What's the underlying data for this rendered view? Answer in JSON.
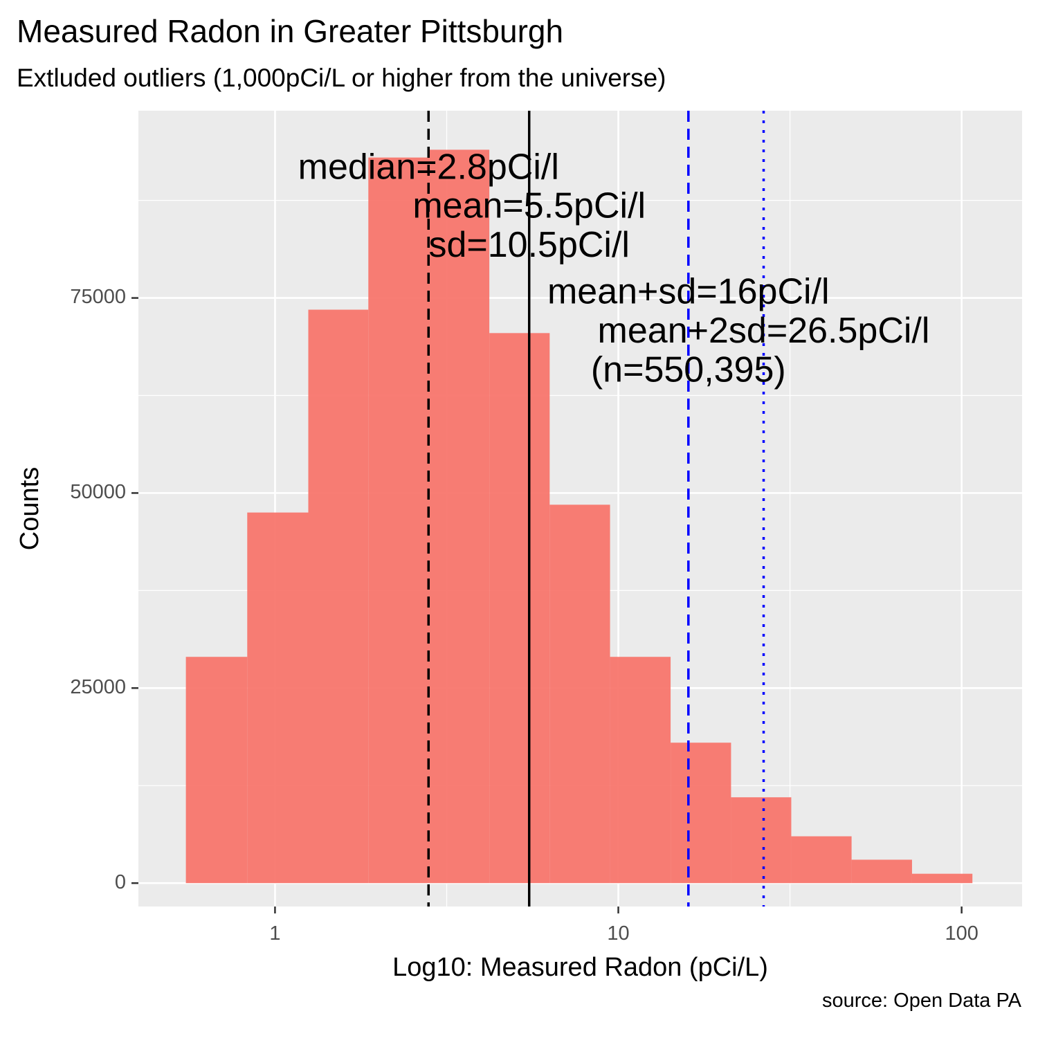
{
  "chart_data": {
    "type": "bar",
    "title": "Measured Radon in Greater Pittsburgh",
    "subtitle": "Extluded outliers (1,000pCi/L or higher from the universe)",
    "caption": "source: Open Data PA",
    "xlabel": "Log10: Measured Radon (pCi/L)",
    "ylabel": "Counts",
    "x_scale": "log10",
    "xlim": [
      0.4,
      150
    ],
    "ylim": [
      -3000,
      99000
    ],
    "x_ticks": [
      1,
      10,
      100
    ],
    "x_tick_labels": [
      "1",
      "10",
      "100"
    ],
    "y_ticks": [
      0,
      25000,
      50000,
      75000
    ],
    "y_tick_labels": [
      "0",
      "25000",
      "50000",
      "75000"
    ],
    "grid": true,
    "bins": [
      {
        "x0": 0.55,
        "x1": 0.83,
        "count": 29000
      },
      {
        "x0": 0.83,
        "x1": 1.25,
        "count": 47500
      },
      {
        "x0": 1.25,
        "x1": 1.87,
        "count": 73500
      },
      {
        "x0": 1.87,
        "x1": 2.81,
        "count": 93000
      },
      {
        "x0": 2.81,
        "x1": 4.21,
        "count": 94000
      },
      {
        "x0": 4.21,
        "x1": 6.31,
        "count": 70500
      },
      {
        "x0": 6.31,
        "x1": 9.46,
        "count": 48500
      },
      {
        "x0": 9.46,
        "x1": 14.2,
        "count": 29000
      },
      {
        "x0": 14.2,
        "x1": 21.3,
        "count": 18000
      },
      {
        "x0": 21.3,
        "x1": 31.9,
        "count": 11000
      },
      {
        "x0": 31.9,
        "x1": 47.8,
        "count": 6000
      },
      {
        "x0": 47.8,
        "x1": 71.7,
        "count": 3000
      },
      {
        "x0": 71.7,
        "x1": 107.5,
        "count": 1200
      }
    ],
    "bar_color": "#F8766D",
    "vlines": [
      {
        "label": "median",
        "x": 2.8,
        "color": "#000000",
        "style": "dashed"
      },
      {
        "label": "mean",
        "x": 5.5,
        "color": "#000000",
        "style": "solid"
      },
      {
        "label": "mean+sd",
        "x": 16,
        "color": "#0000FF",
        "style": "dashed"
      },
      {
        "label": "mean+2sd",
        "x": 26.5,
        "color": "#0000FF",
        "style": "dotted"
      }
    ],
    "annotations": [
      {
        "text": "median=2.8pCi/l",
        "x": 2.8,
        "y": 91500
      },
      {
        "text": "mean=5.5pCi/l",
        "x": 5.5,
        "y": 86500
      },
      {
        "text": "sd=10.5pCi/l",
        "x": 5.5,
        "y": 81500
      },
      {
        "text": "mean+sd=16pCi/l",
        "x": 16,
        "y": 75500
      },
      {
        "text": "mean+2sd=26.5pCi/l",
        "x": 26.5,
        "y": 70500
      },
      {
        "text": "(n=550,395)",
        "x": 16,
        "y": 65500
      }
    ]
  }
}
